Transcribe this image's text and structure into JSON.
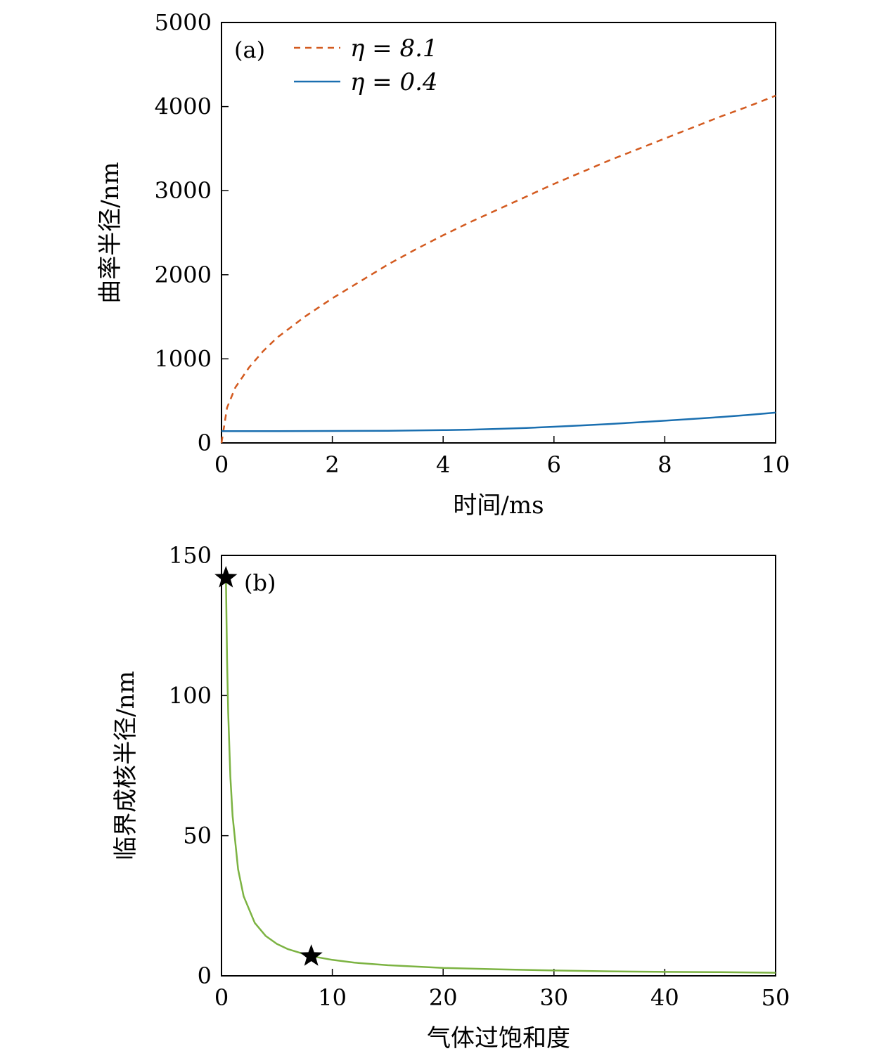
{
  "colors": {
    "eta_high": "#d35a1f",
    "eta_low": "#1a6fb0",
    "critical_radius": "#7cb342",
    "axes": "#000000",
    "marker": "#000000"
  },
  "chart_data": [
    {
      "type": "line",
      "panel_label": "(a)",
      "title": "",
      "xlabel": "时间/ms",
      "ylabel": "曲率半径/nm",
      "xlim": [
        0,
        10
      ],
      "ylim": [
        0,
        5000
      ],
      "xticks": [
        "0",
        "2",
        "4",
        "6",
        "8",
        "10"
      ],
      "yticks": [
        "0",
        "1000",
        "2000",
        "3000",
        "4000",
        "5000"
      ],
      "grid": false,
      "legend_position": "top-left",
      "series": [
        {
          "name": "η = 8.1",
          "line_style": "dashed",
          "color": "#d35a1f",
          "x": [
            0,
            0.1,
            0.25,
            0.5,
            0.75,
            1,
            1.5,
            2,
            2.5,
            3,
            3.5,
            4,
            4.5,
            5,
            5.5,
            6,
            6.5,
            7,
            7.5,
            8,
            8.5,
            9,
            9.5,
            10
          ],
          "y": [
            0,
            420,
            660,
            900,
            1090,
            1250,
            1500,
            1720,
            1920,
            2120,
            2300,
            2470,
            2630,
            2780,
            2930,
            3080,
            3220,
            3360,
            3490,
            3620,
            3750,
            3880,
            4000,
            4130
          ]
        },
        {
          "name": "η = 0.4",
          "line_style": "solid",
          "color": "#1a6fb0",
          "x": [
            0,
            1,
            2,
            3,
            4,
            4.5,
            5,
            5.5,
            6,
            6.5,
            7,
            7.5,
            8,
            8.5,
            9,
            9.5,
            10
          ],
          "y": [
            140,
            140,
            142,
            145,
            152,
            158,
            167,
            178,
            192,
            208,
            225,
            244,
            264,
            285,
            308,
            332,
            360
          ]
        }
      ]
    },
    {
      "type": "line",
      "panel_label": "(b)",
      "title": "",
      "xlabel": "气体过饱和度",
      "ylabel": "临界成核半径/nm",
      "xlim": [
        0,
        50
      ],
      "ylim": [
        0,
        150
      ],
      "xticks": [
        "0",
        "10",
        "20",
        "30",
        "40",
        "50"
      ],
      "yticks": [
        "0",
        "50",
        "100",
        "150"
      ],
      "grid": false,
      "series": [
        {
          "line_style": "solid",
          "color": "#7cb342",
          "x": [
            0.4,
            0.5,
            0.6,
            0.8,
            1,
            1.5,
            2,
            3,
            4,
            5,
            6,
            8,
            10,
            12,
            15,
            20,
            25,
            30,
            35,
            40,
            45,
            50
          ],
          "y": [
            142,
            113,
            94,
            71,
            57,
            38,
            28.4,
            18.9,
            14.2,
            11.4,
            9.5,
            7.1,
            5.7,
            4.7,
            3.8,
            2.8,
            2.3,
            1.9,
            1.6,
            1.4,
            1.3,
            1.1
          ]
        }
      ],
      "markers": [
        {
          "shape": "star",
          "x": 0.4,
          "y": 142
        },
        {
          "shape": "star",
          "x": 8.1,
          "y": 7
        }
      ]
    }
  ]
}
